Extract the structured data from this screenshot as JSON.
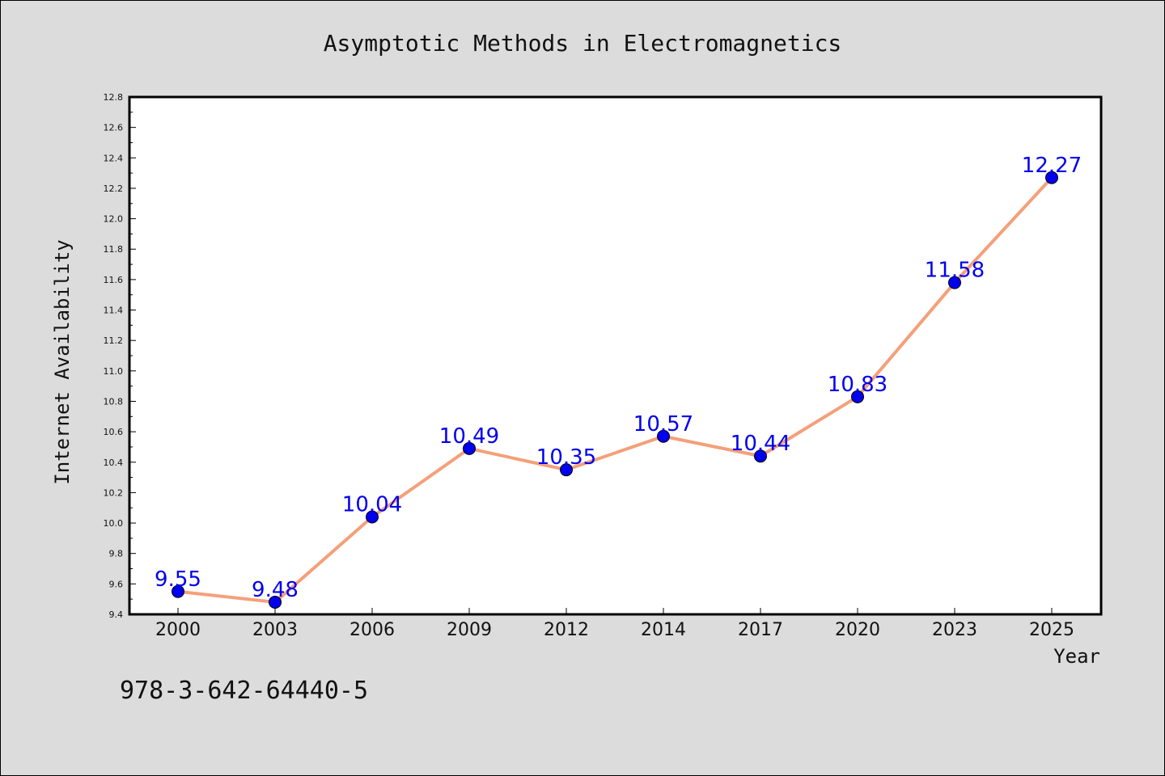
{
  "chart_data": {
    "type": "line",
    "title": "Asymptotic Methods in Electromagnetics",
    "xlabel": "Year",
    "ylabel": "Internet Availability",
    "categories": [
      "2000",
      "2003",
      "2006",
      "2009",
      "2012",
      "2014",
      "2017",
      "2020",
      "2023",
      "2025"
    ],
    "series": [
      {
        "values": [
          9.55,
          9.48,
          10.04,
          10.49,
          10.35,
          10.57,
          10.44,
          10.83,
          11.58,
          12.27
        ],
        "data_labels": [
          "9.55",
          "9.48",
          "10.04",
          "10.49",
          "10.35",
          "10.57",
          "10.44",
          "10.83",
          "11.58",
          "12.27"
        ],
        "line_color": "#f4a07a",
        "marker_color": "#0000ee"
      }
    ],
    "ylim": [
      9.4,
      12.8
    ],
    "yticks": [
      "9.4",
      "9.6",
      "9.8",
      "10.0",
      "10.2",
      "10.4",
      "10.6",
      "10.8",
      "11.0",
      "11.2",
      "11.4",
      "11.6",
      "11.8",
      "12.0",
      "12.2",
      "12.4",
      "12.6",
      "12.8"
    ],
    "grid": false,
    "legend": "none"
  },
  "footer": {
    "isbn": "978-3-642-64440-5"
  },
  "colors": {
    "background": "#dcdcdc",
    "plot_background": "#ffffff",
    "line": "#f4a07a",
    "marker": "#0000ee",
    "label": "#0000ee"
  }
}
